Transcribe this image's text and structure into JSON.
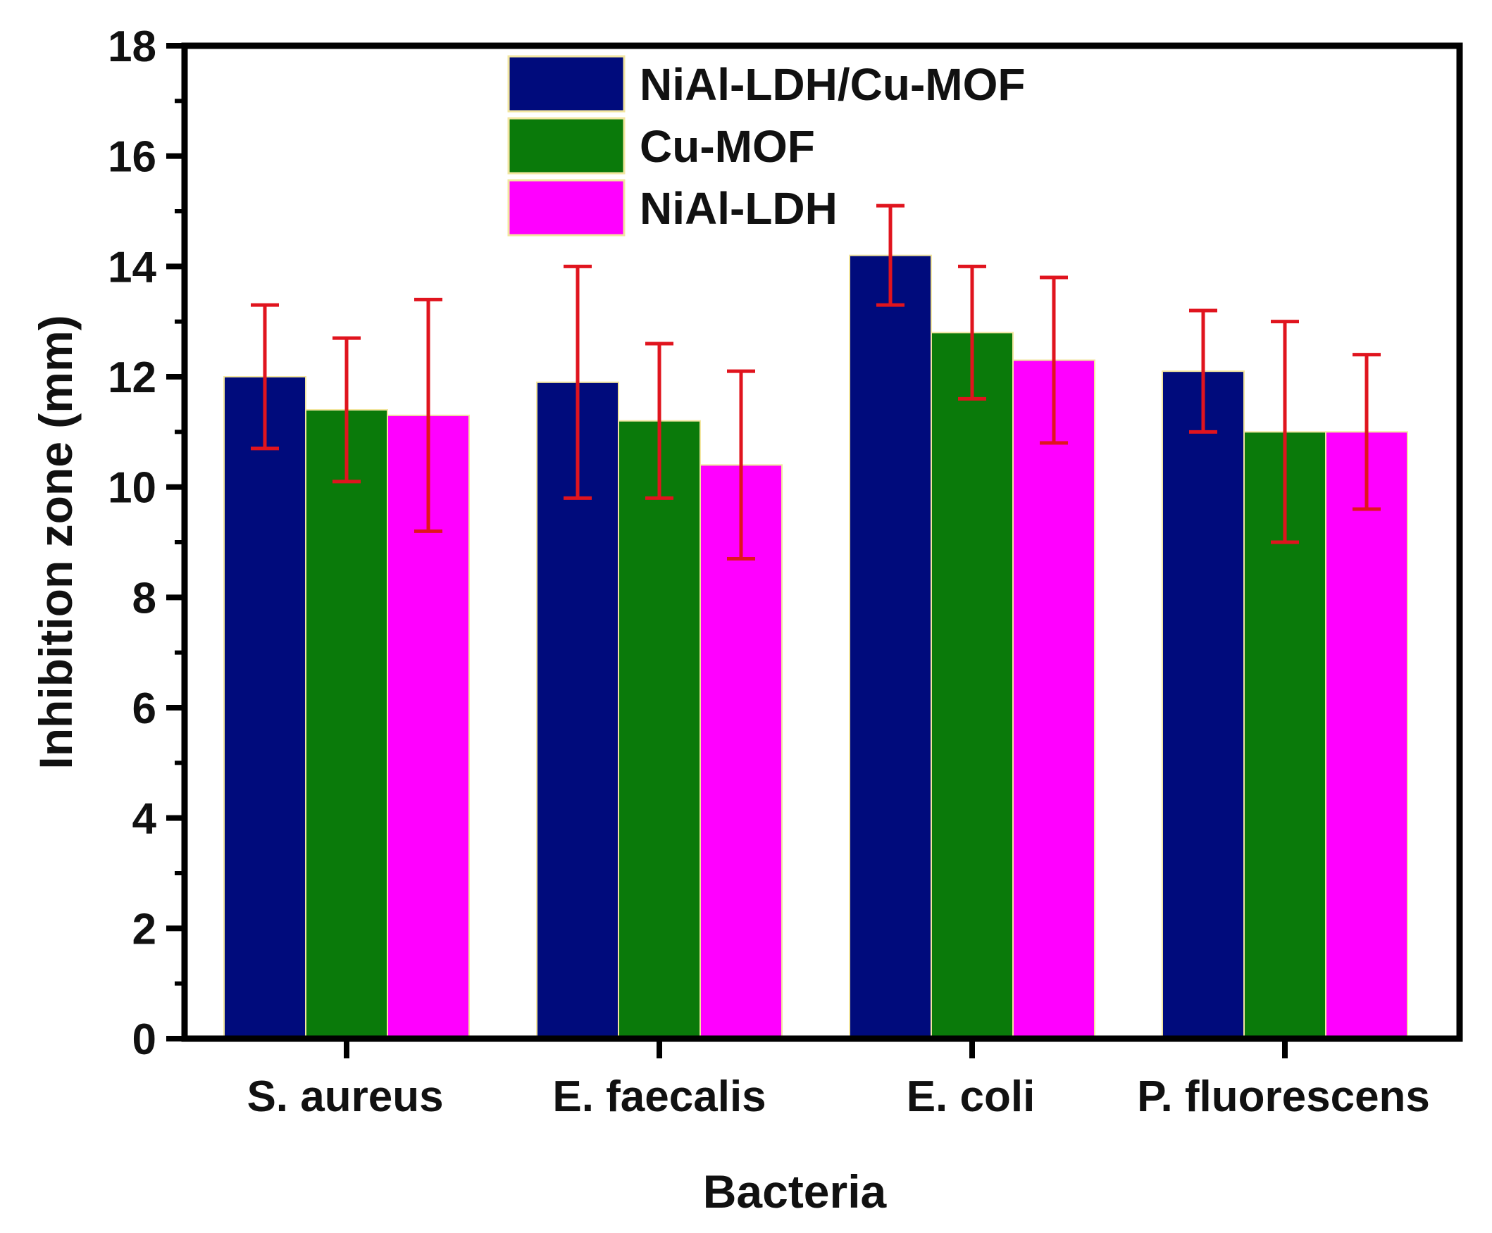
{
  "chart_data": {
    "type": "bar",
    "title": "",
    "xlabel": "Bacteria",
    "ylabel": "Inhibition zone (mm)",
    "ylim": [
      0,
      18
    ],
    "yticks": [
      0,
      2,
      4,
      6,
      8,
      10,
      12,
      14,
      16,
      18
    ],
    "ytick_labels": [
      "0",
      "2",
      "4",
      "6",
      "8",
      "10",
      "12",
      "14",
      "16",
      "18"
    ],
    "grid": false,
    "legend_position": "top-center",
    "categories": [
      "S. aureus",
      "E. faecalis",
      "E. coli",
      "P. fluorescens"
    ],
    "series": [
      {
        "name": "NiAl-LDH/Cu-MOF",
        "color": "#000b7c",
        "values": [
          12.0,
          11.9,
          14.2,
          12.1
        ],
        "errors": [
          1.3,
          2.1,
          0.9,
          1.1
        ]
      },
      {
        "name": "Cu-MOF",
        "color": "#0a7a0a",
        "values": [
          11.4,
          11.2,
          12.8,
          11.0
        ],
        "errors": [
          1.3,
          1.4,
          1.2,
          2.0
        ]
      },
      {
        "name": "NiAl-LDH",
        "color": "#ff00ff",
        "values": [
          11.3,
          10.4,
          12.3,
          11.0
        ],
        "errors": [
          2.1,
          1.7,
          1.5,
          1.4
        ]
      }
    ],
    "error_bar_color": "#e0141e"
  }
}
